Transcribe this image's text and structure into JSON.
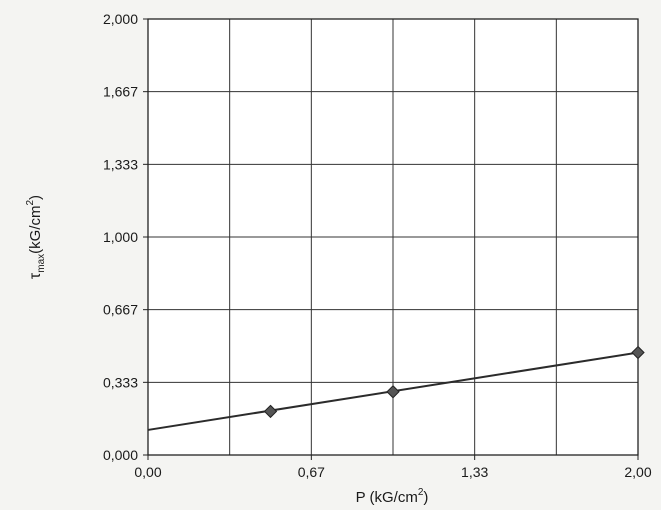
{
  "chart_data": {
    "type": "line",
    "title": "",
    "xlabel_main": "P (kG/cm",
    "xlabel_sup": "2",
    "xlabel_close": ")",
    "ylabel_tau": "τ",
    "ylabel_sub": "max",
    "ylabel_rest": "(kG/cm",
    "ylabel_sup": "2",
    "ylabel_close": ")",
    "xlim": [
      0,
      2
    ],
    "ylim": [
      0,
      2
    ],
    "x_tick_labels": [
      "0,00",
      "0,67",
      "1,33",
      "2,00"
    ],
    "y_tick_labels": [
      "0,000",
      "0,333",
      "0,667",
      "1,000",
      "1,333",
      "1,667",
      "2,000"
    ],
    "grid": true,
    "series": [
      {
        "points": [
          {
            "x": 0.5,
            "y": 0.2
          },
          {
            "x": 1.0,
            "y": 0.29
          },
          {
            "x": 2.0,
            "y": 0.47
          }
        ],
        "marker": "diamond",
        "color": "#555555"
      }
    ],
    "trendline": {
      "x_start": 0.0,
      "y_start": 0.115,
      "x_end": 2.0,
      "y_end": 0.47
    }
  }
}
